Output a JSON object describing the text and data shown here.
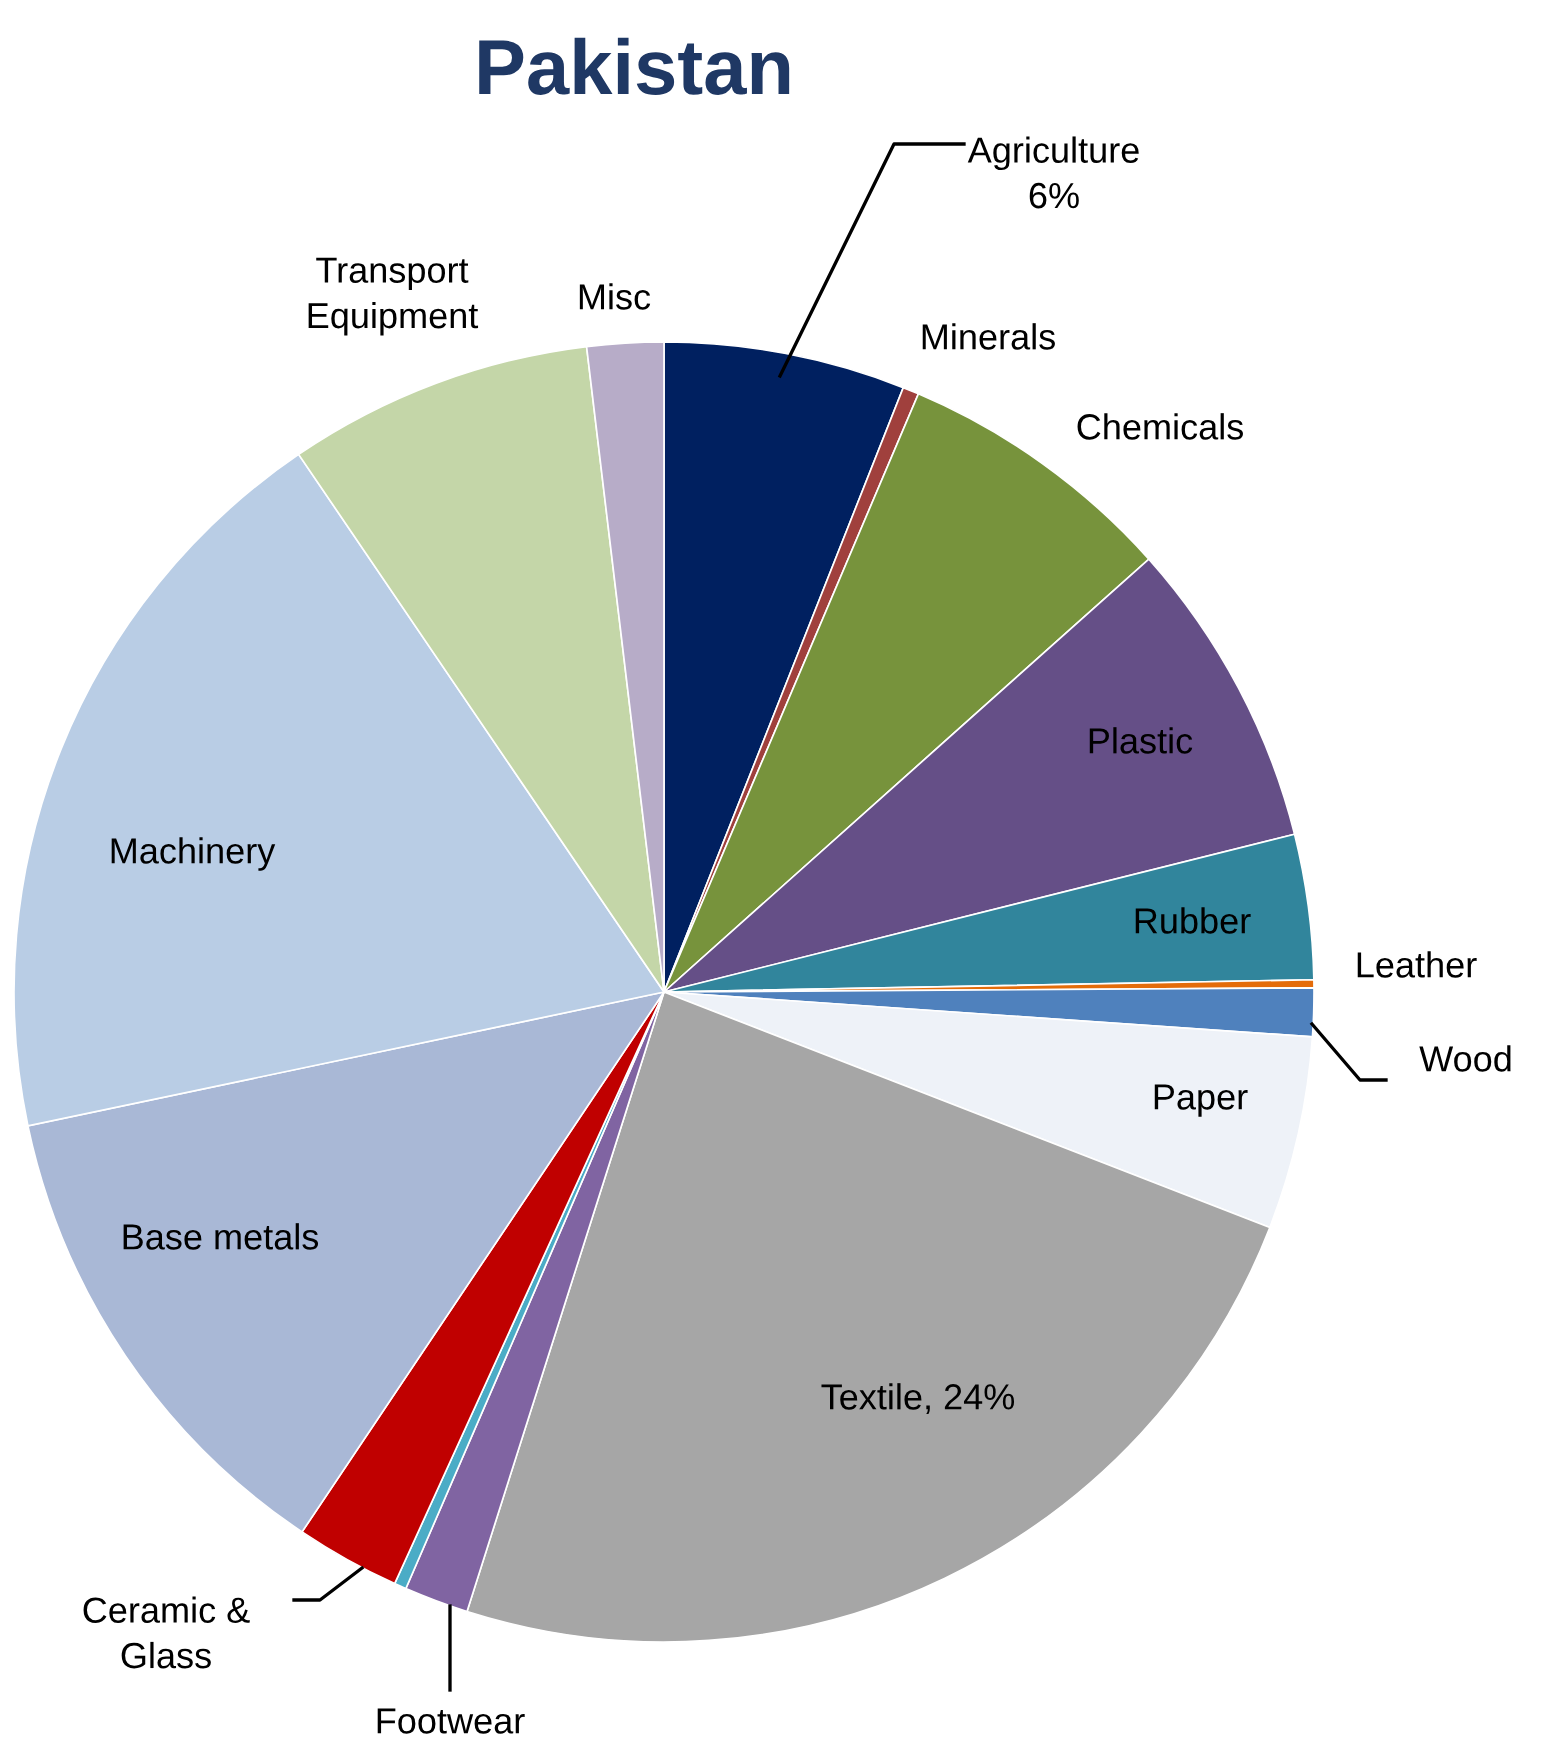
{
  "chart_data": {
    "type": "pie",
    "title": "Pakistan",
    "categories": [
      "Agriculture",
      "Minerals",
      "Chemicals",
      "Plastic",
      "Rubber",
      "Leather",
      "Wood",
      "Paper",
      "Textile",
      "Footwear",
      null,
      "Ceramic & Glass",
      "Base metals",
      "Machinery",
      "Transport Equipment",
      "Misc"
    ],
    "values": [
      6,
      0.4,
      7.0,
      7.7,
      3.6,
      0.2,
      1.2,
      4.8,
      24,
      1.6,
      0.3,
      2.6,
      12.3,
      18.8,
      7.6,
      1.9
    ],
    "value_labels": [
      "6%",
      null,
      null,
      null,
      null,
      null,
      null,
      null,
      "24%",
      null,
      null,
      null,
      null,
      null,
      null,
      null
    ],
    "colors": [
      "#002060",
      "#a0403d",
      "#77933c",
      "#654f87",
      "#31859c",
      "#e46c0a",
      "#4f81bd",
      "#eef2f8",
      "#a6a6a6",
      "#8064a2",
      "#4bacc6",
      "#c00000",
      "#a9b8d6",
      "#b9cde5",
      "#c4d6a8",
      "#b7acc8"
    ],
    "legend": false
  }
}
